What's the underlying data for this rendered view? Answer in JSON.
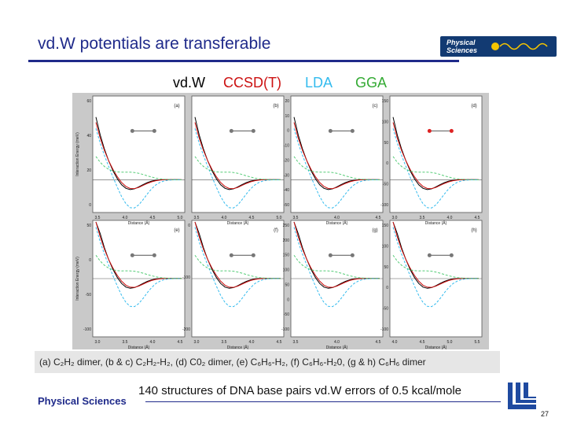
{
  "slide": {
    "title": "vd.W potentials are transferable",
    "legend": [
      {
        "label": "vd.W",
        "color": "#000000"
      },
      {
        "label": "CCSD(T)",
        "color": "#cc1111"
      },
      {
        "label": "LDA",
        "color": "#33bbee"
      },
      {
        "label": "GGA",
        "color": "#33aa33"
      }
    ],
    "caption": "(a) C₂H₂ dimer, (b & c) C₂H₂-H₂, (d) C0₂ dimer, (e) C₆H₆-H₂, (f) C₆H₆-H₂0, (g & h) C₆H₆ dimer",
    "footer_text": "140 structures of DNA base pairs   vd.W errors of 0.5 kcal/mole",
    "footer_label": "Physical Sciences",
    "page_number": "27",
    "logo_text": [
      "Physical",
      "Sciences"
    ]
  },
  "figure": {
    "ylabel_top": "Interaction Energy (meV)",
    "ylabel_bottom": "Interaction Energy (meV)",
    "xlabel": "Distance (Å)",
    "panels": [
      {
        "label": "(a)",
        "xticks": [
          "3.5",
          "4.0",
          "4.5",
          "5.0"
        ],
        "yticks": [
          "60",
          "40",
          "20",
          "0"
        ]
      },
      {
        "label": "(b)",
        "xticks": [
          "3.5",
          "4.0",
          "4.5",
          "5.0"
        ],
        "yticks": []
      },
      {
        "label": "(c)",
        "xticks": [
          "3.5",
          "4.0",
          "4.5"
        ],
        "yticks": [
          "20",
          "10",
          "0",
          "-10",
          "-20",
          "-30",
          "-40",
          "-50"
        ]
      },
      {
        "label": "(d)",
        "xticks": [
          "3.0",
          "3.5",
          "4.0",
          "4.5"
        ],
        "yticks": [
          "150",
          "100",
          "50",
          "0",
          "-50",
          "-100"
        ]
      },
      {
        "label": "(e)",
        "xticks": [
          "3.0",
          "3.5",
          "4.0",
          "4.5"
        ],
        "yticks": [
          "50",
          "0",
          "-50",
          "-100"
        ]
      },
      {
        "label": "(f)",
        "xticks": [
          "3.0",
          "3.5",
          "4.0",
          "4.5"
        ],
        "yticks": [
          "0",
          "-100",
          "-200"
        ]
      },
      {
        "label": "(g)",
        "xticks": [
          "3.5",
          "4.0",
          "4.5"
        ],
        "yticks": [
          "250",
          "200",
          "150",
          "100",
          "50",
          "0",
          "-50",
          "-100"
        ]
      },
      {
        "label": "(h)",
        "xticks": [
          "4.0",
          "4.5",
          "5.0",
          "5.5"
        ],
        "yticks": [
          "150",
          "100",
          "50",
          "0",
          "-50",
          "-100"
        ]
      }
    ]
  }
}
